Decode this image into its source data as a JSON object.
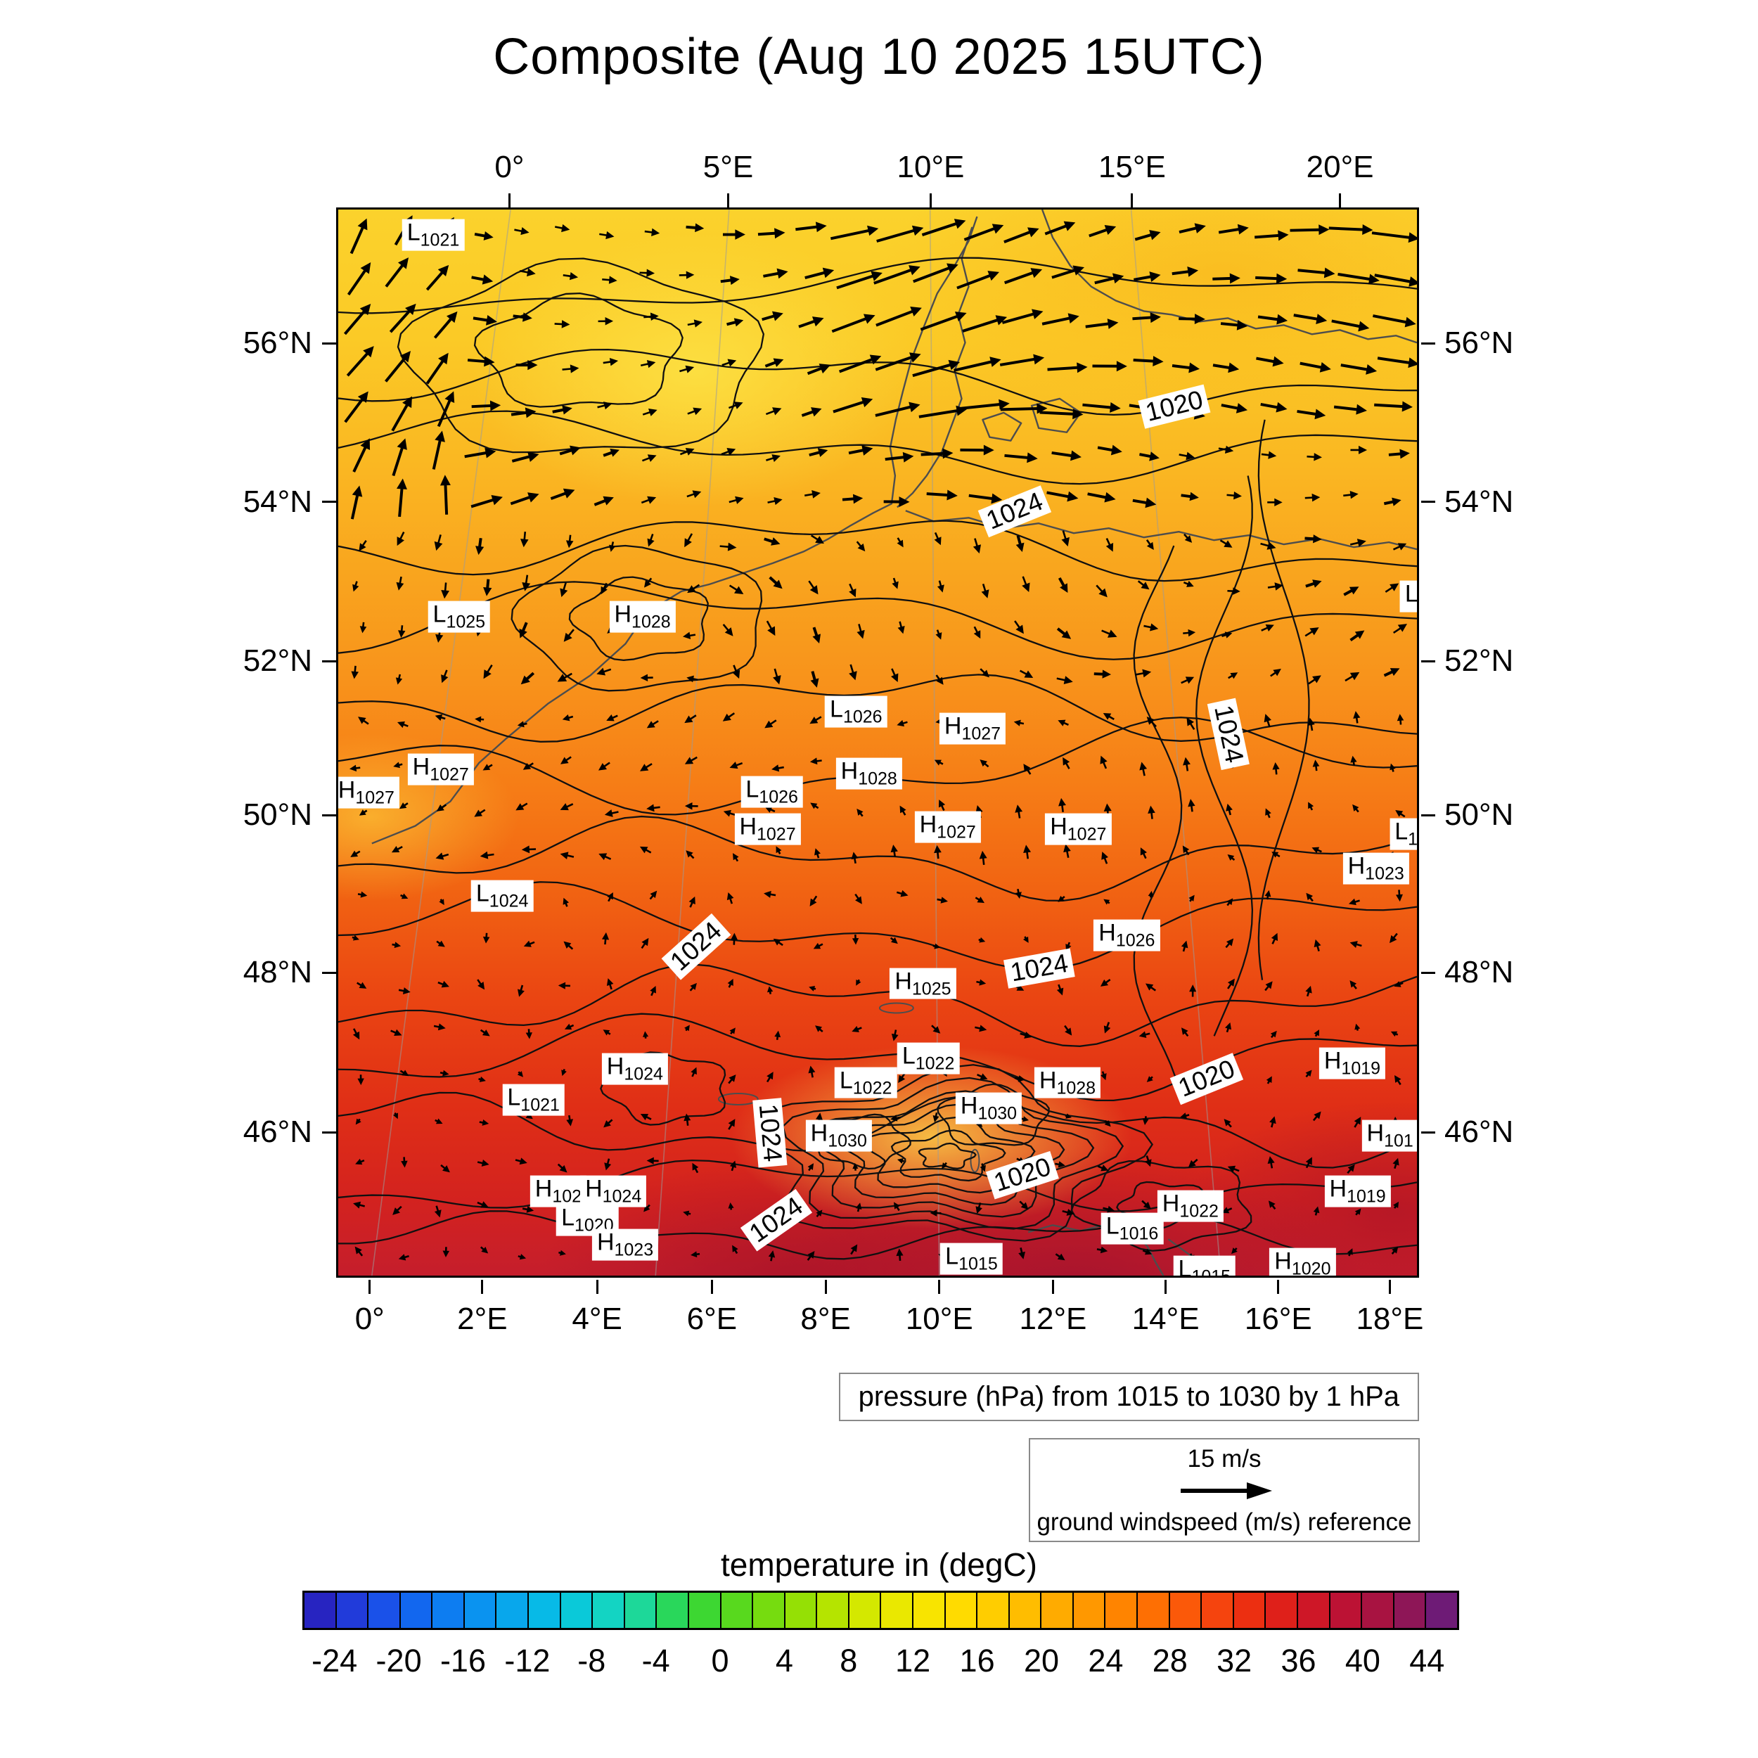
{
  "title": "Composite (Aug 10 2025 15UTC)",
  "chart_data": {
    "type": "heatmap",
    "title": "Composite (Aug 10 2025 15UTC)",
    "description_layers": [
      "temperature shading (degC)",
      "pressure contours (hPa)",
      "ground wind vectors (m/s)"
    ],
    "pressure_caption": "pressure (hPa) from 1015 to 1030 by 1 hPa",
    "pressure_contours": {
      "min_hPa": 1015,
      "max_hPa": 1030,
      "interval_hPa": 1
    },
    "wind_reference": {
      "value": "15 m/s",
      "label": "ground windspeed (m/s) reference"
    },
    "x_axis": {
      "top_ticks": [
        {
          "label": "0°",
          "pos": 16.0
        },
        {
          "label": "5°E",
          "pos": 36.2
        },
        {
          "label": "10°E",
          "pos": 54.9
        },
        {
          "label": "15°E",
          "pos": 73.5
        },
        {
          "label": "20°E",
          "pos": 92.7
        }
      ],
      "bottom_ticks": [
        {
          "label": "0°",
          "pos": 3.1
        },
        {
          "label": "2°E",
          "pos": 13.5
        },
        {
          "label": "4°E",
          "pos": 24.1
        },
        {
          "label": "6°E",
          "pos": 34.7
        },
        {
          "label": "8°E",
          "pos": 45.2
        },
        {
          "label": "10°E",
          "pos": 55.7
        },
        {
          "label": "12°E",
          "pos": 66.2
        },
        {
          "label": "14°E",
          "pos": 76.6
        },
        {
          "label": "16°E",
          "pos": 87.0
        },
        {
          "label": "18°E",
          "pos": 97.3
        }
      ]
    },
    "y_axis": {
      "left_ticks": [
        {
          "label": "56°N",
          "pos": 12.7
        },
        {
          "label": "54°N",
          "pos": 27.5
        },
        {
          "label": "52°N",
          "pos": 42.4
        },
        {
          "label": "50°N",
          "pos": 56.8
        },
        {
          "label": "48°N",
          "pos": 71.5
        },
        {
          "label": "46°N",
          "pos": 86.4
        }
      ],
      "right_ticks": [
        {
          "label": "56°N",
          "pos": 12.7
        },
        {
          "label": "54°N",
          "pos": 27.5
        },
        {
          "label": "52°N",
          "pos": 42.4
        },
        {
          "label": "50°N",
          "pos": 56.8
        },
        {
          "label": "48°N",
          "pos": 71.5
        },
        {
          "label": "46°N",
          "pos": 86.4
        }
      ]
    },
    "pressure_centers": [
      {
        "kind": "L",
        "value": "1021",
        "x": 8.8,
        "y": 2.4
      },
      {
        "kind": "L",
        "value": "1025",
        "x": 11.2,
        "y": 38.2
      },
      {
        "kind": "H",
        "value": "1028",
        "x": 28.2,
        "y": 38.2
      },
      {
        "kind": "L",
        "value": "",
        "x": 99.5,
        "y": 36.3
      },
      {
        "kind": "L",
        "value": "1026",
        "x": 48.0,
        "y": 47.1
      },
      {
        "kind": "H",
        "value": "1027",
        "x": 58.8,
        "y": 48.7
      },
      {
        "kind": "H",
        "value": "1027",
        "x": 9.5,
        "y": 52.5
      },
      {
        "kind": "H",
        "value": "1027",
        "x": 2.6,
        "y": 54.7
      },
      {
        "kind": "H",
        "value": "1028",
        "x": 49.2,
        "y": 52.9
      },
      {
        "kind": "L",
        "value": "1026",
        "x": 40.2,
        "y": 54.6
      },
      {
        "kind": "H",
        "value": "1027",
        "x": 39.8,
        "y": 58.1
      },
      {
        "kind": "H",
        "value": "1027",
        "x": 56.5,
        "y": 57.9
      },
      {
        "kind": "H",
        "value": "1027",
        "x": 68.6,
        "y": 58.1
      },
      {
        "kind": "L",
        "value": "1",
        "x": 99.0,
        "y": 58.6
      },
      {
        "kind": "H",
        "value": "1023",
        "x": 96.2,
        "y": 61.8
      },
      {
        "kind": "L",
        "value": "1024",
        "x": 15.2,
        "y": 64.4
      },
      {
        "kind": "H",
        "value": "1026",
        "x": 73.1,
        "y": 68.1
      },
      {
        "kind": "H",
        "value": "1025",
        "x": 54.2,
        "y": 72.6
      },
      {
        "kind": "H",
        "value": "1024",
        "x": 27.5,
        "y": 80.6
      },
      {
        "kind": "L",
        "value": "1022",
        "x": 54.7,
        "y": 79.6
      },
      {
        "kind": "L",
        "value": "1022",
        "x": 48.9,
        "y": 81.9
      },
      {
        "kind": "H",
        "value": "1028",
        "x": 67.6,
        "y": 81.9
      },
      {
        "kind": "H",
        "value": "1019",
        "x": 94.0,
        "y": 80.1
      },
      {
        "kind": "L",
        "value": "1021",
        "x": 18.1,
        "y": 83.5
      },
      {
        "kind": "H",
        "value": "1030",
        "x": 60.3,
        "y": 84.3
      },
      {
        "kind": "H",
        "value": "1030",
        "x": 46.4,
        "y": 86.9
      },
      {
        "kind": "H",
        "value": "101",
        "x": 97.5,
        "y": 86.9
      },
      {
        "kind": "H",
        "value": "102",
        "x": 20.4,
        "y": 92.1
      },
      {
        "kind": "H",
        "value": "1024",
        "x": 25.5,
        "y": 92.1
      },
      {
        "kind": "H",
        "value": "1019",
        "x": 94.5,
        "y": 92.1
      },
      {
        "kind": "L",
        "value": "1020",
        "x": 23.1,
        "y": 94.8
      },
      {
        "kind": "H",
        "value": "1022",
        "x": 79.0,
        "y": 93.5
      },
      {
        "kind": "H",
        "value": "1023",
        "x": 26.6,
        "y": 97.1
      },
      {
        "kind": "L",
        "value": "1015",
        "x": 58.7,
        "y": 98.4
      },
      {
        "kind": "L",
        "value": "1016",
        "x": 73.6,
        "y": 95.6
      },
      {
        "kind": "H",
        "value": "1020",
        "x": 89.4,
        "y": 98.9
      },
      {
        "kind": "L",
        "value": "1015",
        "x": 80.3,
        "y": 99.6
      }
    ],
    "contour_labels": [
      {
        "text": "1020",
        "x": 77.5,
        "y": 18.5,
        "rot": -14
      },
      {
        "text": "1024",
        "x": 62.7,
        "y": 28.3,
        "rot": -22
      },
      {
        "text": "1024",
        "x": 82.5,
        "y": 49.2,
        "rot": 78
      },
      {
        "text": "1024",
        "x": 33.2,
        "y": 69.1,
        "rot": -42
      },
      {
        "text": "1024",
        "x": 65.0,
        "y": 71.2,
        "rot": -10
      },
      {
        "text": "1020",
        "x": 80.5,
        "y": 81.5,
        "rot": -22
      },
      {
        "text": "1024",
        "x": 40.0,
        "y": 86.6,
        "rot": 85
      },
      {
        "text": "1020",
        "x": 63.4,
        "y": 90.6,
        "rot": -18
      },
      {
        "text": "1024",
        "x": 40.6,
        "y": 94.8,
        "rot": -35
      }
    ],
    "temperature_colorbar": {
      "title": "temperature in (degC)",
      "range": [
        -26,
        46
      ],
      "cell_step_degC": 2,
      "ticks": [
        -24,
        -20,
        -16,
        -12,
        -8,
        -4,
        0,
        4,
        8,
        12,
        16,
        20,
        24,
        28,
        32,
        36,
        40,
        44
      ],
      "stops": [
        {
          "t": -26,
          "c": "#2a18b4"
        },
        {
          "t": -22,
          "c": "#1e46e6"
        },
        {
          "t": -18,
          "c": "#0e72f2"
        },
        {
          "t": -14,
          "c": "#089eef"
        },
        {
          "t": -10,
          "c": "#06c3e4"
        },
        {
          "t": -6,
          "c": "#17d9b8"
        },
        {
          "t": -2,
          "c": "#2fd63c"
        },
        {
          "t": 2,
          "c": "#66da14"
        },
        {
          "t": 6,
          "c": "#a5e200"
        },
        {
          "t": 10,
          "c": "#e3ea00"
        },
        {
          "t": 14,
          "c": "#ffe200"
        },
        {
          "t": 18,
          "c": "#ffc600"
        },
        {
          "t": 22,
          "c": "#ffa200"
        },
        {
          "t": 26,
          "c": "#ff7a00"
        },
        {
          "t": 30,
          "c": "#f94e0c"
        },
        {
          "t": 34,
          "c": "#e72413"
        },
        {
          "t": 38,
          "c": "#c6122e"
        },
        {
          "t": 42,
          "c": "#9e1347"
        },
        {
          "t": 46,
          "c": "#5e1d85"
        }
      ]
    }
  }
}
